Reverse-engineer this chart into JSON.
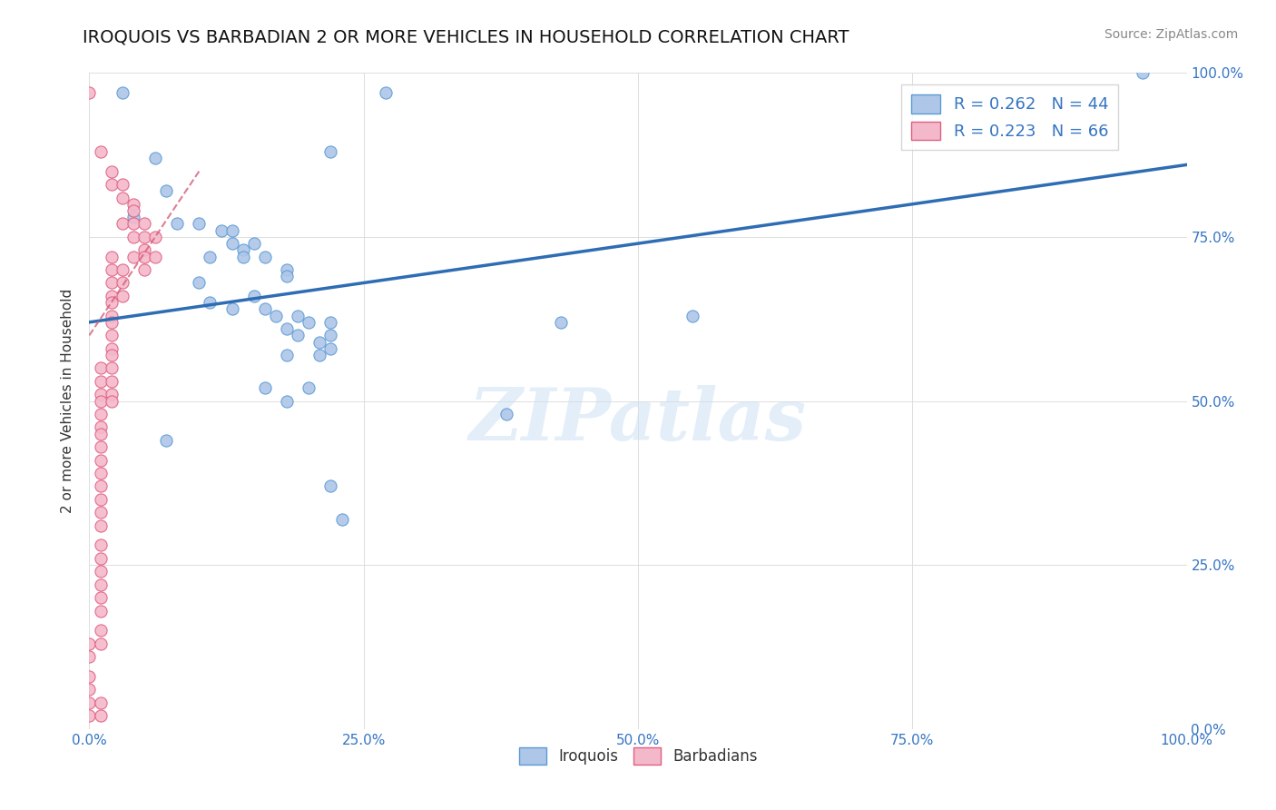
{
  "title": "IROQUOIS VS BARBADIAN 2 OR MORE VEHICLES IN HOUSEHOLD CORRELATION CHART",
  "source": "Source: ZipAtlas.com",
  "ylabel": "2 or more Vehicles in Household",
  "iroquois_color": "#aec6e8",
  "iroquois_edge": "#5b9bd5",
  "barbadians_color": "#f4b8cb",
  "barbadians_edge": "#e06080",
  "trend_iroquois_color": "#2e6db4",
  "trend_barbadians_color": "#d45f7a",
  "legend_iroquois_R": "R = 0.262",
  "legend_iroquois_N": "N = 44",
  "legend_barbadians_R": "R = 0.223",
  "legend_barbadians_N": "N = 66",
  "iroquois_scatter": [
    [
      0.03,
      0.97
    ],
    [
      0.27,
      0.97
    ],
    [
      0.96,
      1.0
    ],
    [
      0.22,
      0.88
    ],
    [
      0.06,
      0.87
    ],
    [
      0.07,
      0.82
    ],
    [
      0.04,
      0.78
    ],
    [
      0.08,
      0.77
    ],
    [
      0.1,
      0.77
    ],
    [
      0.12,
      0.76
    ],
    [
      0.13,
      0.76
    ],
    [
      0.13,
      0.74
    ],
    [
      0.11,
      0.72
    ],
    [
      0.14,
      0.73
    ],
    [
      0.15,
      0.74
    ],
    [
      0.14,
      0.72
    ],
    [
      0.16,
      0.72
    ],
    [
      0.18,
      0.7
    ],
    [
      0.18,
      0.69
    ],
    [
      0.1,
      0.68
    ],
    [
      0.15,
      0.66
    ],
    [
      0.11,
      0.65
    ],
    [
      0.13,
      0.64
    ],
    [
      0.16,
      0.64
    ],
    [
      0.17,
      0.63
    ],
    [
      0.19,
      0.63
    ],
    [
      0.18,
      0.61
    ],
    [
      0.2,
      0.62
    ],
    [
      0.22,
      0.62
    ],
    [
      0.19,
      0.6
    ],
    [
      0.21,
      0.59
    ],
    [
      0.22,
      0.6
    ],
    [
      0.22,
      0.58
    ],
    [
      0.18,
      0.57
    ],
    [
      0.21,
      0.57
    ],
    [
      0.43,
      0.62
    ],
    [
      0.55,
      0.63
    ],
    [
      0.16,
      0.52
    ],
    [
      0.2,
      0.52
    ],
    [
      0.18,
      0.5
    ],
    [
      0.38,
      0.48
    ],
    [
      0.07,
      0.44
    ],
    [
      0.22,
      0.37
    ],
    [
      0.23,
      0.32
    ]
  ],
  "barbadians_scatter": [
    [
      0.0,
      0.97
    ],
    [
      0.01,
      0.88
    ],
    [
      0.02,
      0.85
    ],
    [
      0.02,
      0.83
    ],
    [
      0.03,
      0.83
    ],
    [
      0.03,
      0.81
    ],
    [
      0.04,
      0.8
    ],
    [
      0.04,
      0.79
    ],
    [
      0.03,
      0.77
    ],
    [
      0.04,
      0.77
    ],
    [
      0.05,
      0.77
    ],
    [
      0.04,
      0.75
    ],
    [
      0.05,
      0.75
    ],
    [
      0.06,
      0.75
    ],
    [
      0.05,
      0.73
    ],
    [
      0.02,
      0.72
    ],
    [
      0.04,
      0.72
    ],
    [
      0.05,
      0.72
    ],
    [
      0.06,
      0.72
    ],
    [
      0.02,
      0.7
    ],
    [
      0.03,
      0.7
    ],
    [
      0.05,
      0.7
    ],
    [
      0.02,
      0.68
    ],
    [
      0.03,
      0.68
    ],
    [
      0.02,
      0.66
    ],
    [
      0.03,
      0.66
    ],
    [
      0.02,
      0.65
    ],
    [
      0.02,
      0.63
    ],
    [
      0.02,
      0.62
    ],
    [
      0.02,
      0.6
    ],
    [
      0.02,
      0.58
    ],
    [
      0.02,
      0.57
    ],
    [
      0.01,
      0.55
    ],
    [
      0.02,
      0.55
    ],
    [
      0.01,
      0.53
    ],
    [
      0.02,
      0.53
    ],
    [
      0.01,
      0.51
    ],
    [
      0.02,
      0.51
    ],
    [
      0.01,
      0.5
    ],
    [
      0.02,
      0.5
    ],
    [
      0.01,
      0.48
    ],
    [
      0.01,
      0.46
    ],
    [
      0.01,
      0.45
    ],
    [
      0.01,
      0.43
    ],
    [
      0.01,
      0.41
    ],
    [
      0.01,
      0.39
    ],
    [
      0.01,
      0.37
    ],
    [
      0.01,
      0.35
    ],
    [
      0.01,
      0.33
    ],
    [
      0.01,
      0.31
    ],
    [
      0.01,
      0.28
    ],
    [
      0.01,
      0.26
    ],
    [
      0.01,
      0.24
    ],
    [
      0.01,
      0.22
    ],
    [
      0.01,
      0.2
    ],
    [
      0.01,
      0.18
    ],
    [
      0.01,
      0.15
    ],
    [
      0.0,
      0.13
    ],
    [
      0.01,
      0.13
    ],
    [
      0.0,
      0.11
    ],
    [
      0.0,
      0.08
    ],
    [
      0.0,
      0.06
    ],
    [
      0.0,
      0.04
    ],
    [
      0.01,
      0.04
    ],
    [
      0.0,
      0.02
    ],
    [
      0.01,
      0.02
    ]
  ],
  "xlim": [
    0.0,
    1.0
  ],
  "ylim": [
    0.0,
    1.0
  ],
  "xticks": [
    0.0,
    0.25,
    0.5,
    0.75,
    1.0
  ],
  "yticks": [
    0.0,
    0.25,
    0.5,
    0.75,
    1.0
  ],
  "xtick_labels": [
    "0.0%",
    "25.0%",
    "50.0%",
    "75.0%",
    "100.0%"
  ],
  "ytick_labels_right": [
    "0.0%",
    "25.0%",
    "50.0%",
    "75.0%",
    "100.0%"
  ],
  "title_fontsize": 14,
  "tick_fontsize": 11,
  "legend_fontsize": 13,
  "source_fontsize": 10
}
